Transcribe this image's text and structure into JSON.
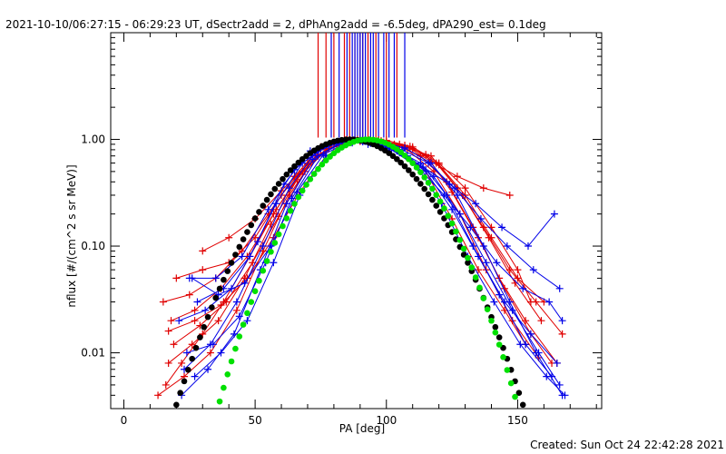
{
  "chart_data": {
    "type": "line",
    "title": "2021-10-10/06:27:15 - 06:29:23 UT, dSectr2add = 2, dPhAng2add = -6.5deg, dPA290_est=  0.1deg",
    "xlabel": "PA [deg]",
    "ylabel": "nflux [#/(cm^2 s sr MeV)]",
    "footer": "Created: Sun Oct 24 22:42:28 2021",
    "xlim": [
      -5,
      182
    ],
    "ylim": [
      0.003,
      10
    ],
    "yscale": "log",
    "x_ticks": [
      0,
      50,
      100,
      150
    ],
    "y_ticks": [
      {
        "value": 0.01,
        "label": "0.01"
      },
      {
        "value": 0.1,
        "label": "0.10"
      },
      {
        "value": 1,
        "label": "1.00"
      }
    ],
    "colors": {
      "red": "#e00000",
      "blue": "#0000e8",
      "black": "#000000",
      "green": "#00e000"
    },
    "peak_markers": {
      "red_x": [
        74,
        77,
        80,
        84,
        86,
        88,
        90,
        91,
        93,
        96,
        100,
        104
      ],
      "blue_x": [
        79,
        82,
        85,
        87,
        88,
        89,
        90,
        91,
        92,
        94,
        95,
        97,
        99,
        101,
        103,
        107
      ]
    },
    "series": [
      {
        "color": "red",
        "x": [
          17,
          26,
          36,
          46,
          56,
          66,
          75,
          85,
          95,
          105,
          115,
          125,
          135,
          145,
          155,
          163
        ],
        "y": [
          0.008,
          0.012,
          0.02,
          0.05,
          0.16,
          0.42,
          0.8,
          1.0,
          0.97,
          0.9,
          0.72,
          0.32,
          0.12,
          0.04,
          0.015,
          0.008
        ]
      },
      {
        "color": "red",
        "x": [
          15,
          25,
          35,
          45,
          55,
          65,
          75,
          85,
          95,
          105,
          115,
          125,
          135,
          145,
          153
        ],
        "y": [
          0.03,
          0.035,
          0.05,
          0.09,
          0.2,
          0.45,
          0.85,
          0.99,
          0.95,
          0.8,
          0.5,
          0.18,
          0.06,
          0.025,
          0.012
        ]
      },
      {
        "color": "red",
        "x": [
          16,
          22,
          30,
          38,
          48,
          58,
          68,
          78,
          88,
          98,
          108,
          118,
          128,
          138,
          148,
          158
        ],
        "y": [
          0.005,
          0.008,
          0.015,
          0.03,
          0.08,
          0.22,
          0.5,
          0.82,
          0.98,
          0.97,
          0.8,
          0.5,
          0.2,
          0.06,
          0.02,
          0.009
        ]
      },
      {
        "color": "red",
        "x": [
          19,
          29,
          39,
          49,
          59,
          69,
          79,
          89,
          99,
          109,
          119,
          129,
          139,
          149,
          159
        ],
        "y": [
          0.012,
          0.018,
          0.03,
          0.07,
          0.19,
          0.5,
          0.88,
          1.0,
          0.94,
          0.86,
          0.6,
          0.3,
          0.12,
          0.045,
          0.02
        ]
      },
      {
        "color": "red",
        "x": [
          18,
          27,
          37,
          47,
          57,
          67,
          77,
          87,
          97,
          107,
          117,
          127,
          137,
          147,
          157,
          167
        ],
        "y": [
          0.02,
          0.025,
          0.04,
          0.08,
          0.2,
          0.48,
          0.8,
          0.98,
          0.99,
          0.85,
          0.7,
          0.35,
          0.15,
          0.06,
          0.03,
          0.015
        ]
      },
      {
        "color": "red",
        "x": [
          20,
          30,
          40,
          50,
          60,
          70,
          80,
          90,
          100,
          110,
          120,
          130,
          140,
          150,
          160
        ],
        "y": [
          0.05,
          0.06,
          0.07,
          0.12,
          0.3,
          0.6,
          0.9,
          0.97,
          0.95,
          0.82,
          0.58,
          0.3,
          0.12,
          0.05,
          0.03
        ]
      },
      {
        "color": "red",
        "x": [
          30,
          40,
          50,
          60,
          70,
          80,
          90,
          100,
          110,
          120,
          130,
          140,
          150,
          155
        ],
        "y": [
          0.09,
          0.12,
          0.18,
          0.33,
          0.58,
          0.85,
          0.96,
          0.98,
          0.85,
          0.6,
          0.35,
          0.15,
          0.06,
          0.03
        ]
      },
      {
        "color": "red",
        "x": [
          13,
          23,
          33,
          43,
          53,
          63,
          73,
          83,
          93,
          103,
          113,
          123,
          133,
          143,
          153,
          165
        ],
        "y": [
          0.004,
          0.006,
          0.01,
          0.025,
          0.09,
          0.3,
          0.7,
          0.93,
          1.0,
          0.9,
          0.7,
          0.4,
          0.15,
          0.05,
          0.02,
          0.008
        ]
      },
      {
        "color": "red",
        "x": [
          17,
          27,
          37,
          47,
          57,
          67,
          77,
          87,
          97,
          107,
          117,
          127,
          137,
          147
        ],
        "y": [
          0.016,
          0.02,
          0.028,
          0.05,
          0.12,
          0.32,
          0.7,
          0.95,
          0.98,
          0.88,
          0.62,
          0.45,
          0.35,
          0.3
        ]
      },
      {
        "color": "blue",
        "x": [
          23,
          33,
          43,
          53,
          63,
          73,
          83,
          93,
          103,
          113,
          123,
          133,
          143,
          153,
          163
        ],
        "y": [
          0.007,
          0.012,
          0.03,
          0.1,
          0.35,
          0.75,
          0.97,
          0.9,
          0.82,
          0.6,
          0.3,
          0.1,
          0.035,
          0.012,
          0.006
        ]
      },
      {
        "color": "blue",
        "x": [
          21,
          31,
          41,
          51,
          61,
          71,
          81,
          91,
          101,
          111,
          121,
          131,
          141,
          151,
          161,
          168
        ],
        "y": [
          0.02,
          0.025,
          0.04,
          0.11,
          0.38,
          0.78,
          0.95,
          0.95,
          0.85,
          0.58,
          0.25,
          0.08,
          0.03,
          0.012,
          0.006,
          0.004
        ]
      },
      {
        "color": "blue",
        "x": [
          25,
          35,
          45,
          55,
          65,
          75,
          85,
          95,
          105,
          115,
          125,
          135,
          145,
          155,
          165
        ],
        "y": [
          0.05,
          0.05,
          0.08,
          0.22,
          0.52,
          0.82,
          0.97,
          0.93,
          0.75,
          0.5,
          0.22,
          0.08,
          0.03,
          0.015,
          0.008
        ]
      },
      {
        "color": "blue",
        "x": [
          22,
          32,
          42,
          52,
          62,
          72,
          82,
          92,
          102,
          112,
          122,
          132,
          142,
          152,
          162,
          167
        ],
        "y": [
          0.004,
          0.007,
          0.015,
          0.06,
          0.25,
          0.65,
          0.92,
          0.97,
          0.8,
          0.55,
          0.3,
          0.15,
          0.07,
          0.04,
          0.03,
          0.02
        ]
      },
      {
        "color": "blue",
        "x": [
          28,
          38,
          48,
          58,
          68,
          78,
          88,
          98,
          108,
          118,
          128,
          138,
          148,
          158,
          166
        ],
        "y": [
          0.03,
          0.04,
          0.08,
          0.25,
          0.6,
          0.88,
          0.98,
          0.9,
          0.7,
          0.45,
          0.2,
          0.07,
          0.025,
          0.01,
          0.005
        ]
      },
      {
        "color": "blue",
        "x": [
          24,
          34,
          44,
          54,
          64,
          74,
          84,
          94,
          104,
          114,
          124,
          134,
          144,
          154,
          164
        ],
        "y": [
          0.01,
          0.012,
          0.022,
          0.07,
          0.28,
          0.7,
          0.95,
          0.92,
          0.78,
          0.55,
          0.38,
          0.25,
          0.15,
          0.1,
          0.2
        ]
      },
      {
        "color": "blue",
        "x": [
          26,
          36,
          46,
          56,
          66,
          76,
          86,
          96,
          106,
          116,
          126,
          136,
          146,
          156,
          166
        ],
        "y": [
          0.05,
          0.035,
          0.045,
          0.1,
          0.32,
          0.72,
          0.96,
          0.95,
          0.8,
          0.6,
          0.35,
          0.18,
          0.1,
          0.06,
          0.04
        ]
      },
      {
        "color": "blue",
        "x": [
          27,
          37,
          47,
          57,
          67,
          77,
          87,
          97,
          107,
          117,
          127,
          137,
          147,
          157,
          167
        ],
        "y": [
          0.006,
          0.01,
          0.02,
          0.07,
          0.3,
          0.7,
          0.93,
          0.96,
          0.83,
          0.6,
          0.3,
          0.1,
          0.03,
          0.01,
          0.004
        ]
      }
    ],
    "fits": [
      {
        "color": "black",
        "center": 86,
        "sigma": 19.5
      },
      {
        "color": "green",
        "center": 93,
        "sigma": 16.8
      }
    ]
  }
}
